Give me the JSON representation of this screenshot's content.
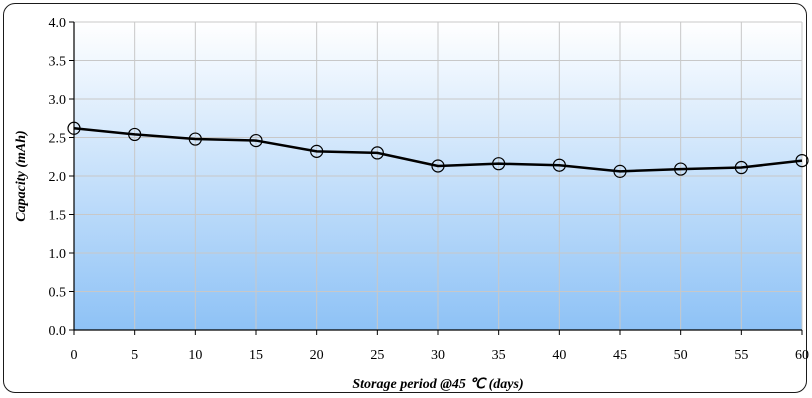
{
  "chart_data": {
    "type": "line",
    "title": "",
    "xlabel": "Storage period @45 ℃ (days)",
    "ylabel": "Capacity (mAh)",
    "x": [
      0,
      5,
      10,
      15,
      20,
      25,
      30,
      35,
      40,
      45,
      50,
      55,
      60
    ],
    "series": [
      {
        "values": [
          2.62,
          2.54,
          2.48,
          2.46,
          2.32,
          2.3,
          2.13,
          2.16,
          2.14,
          2.06,
          2.09,
          2.11,
          2.2
        ]
      }
    ],
    "xlim": [
      0,
      60
    ],
    "ylim": [
      0.0,
      4.0
    ],
    "x_ticks": [
      "0",
      "5",
      "10",
      "15",
      "20",
      "25",
      "30",
      "35",
      "40",
      "45",
      "50",
      "55",
      "60"
    ],
    "y_ticks": [
      "0.0",
      "0.5",
      "1.0",
      "1.5",
      "2.0",
      "2.5",
      "3.0",
      "3.5",
      "4.0"
    ],
    "grid": true,
    "legend": "none",
    "colors": {
      "line": "#000000",
      "marker": "#000000",
      "grid": "#c8c8c8",
      "bg_top": "#ffffff",
      "bg_bottom": "#8ec2f6"
    }
  }
}
